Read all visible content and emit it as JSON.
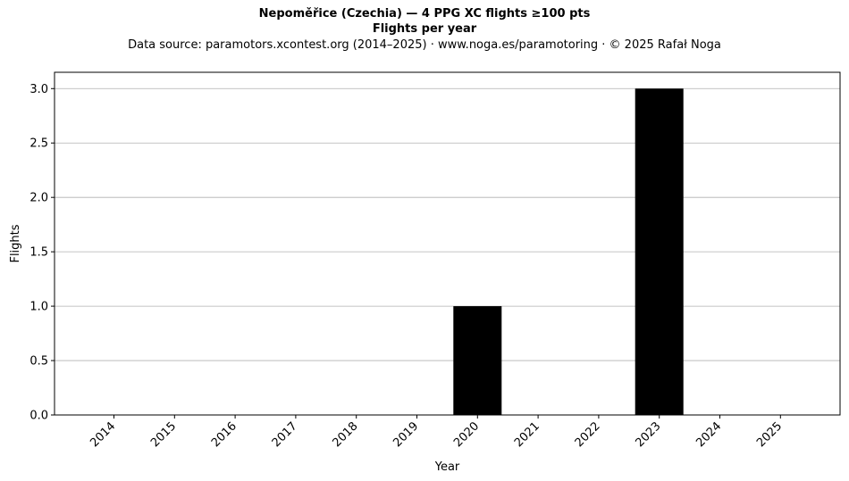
{
  "title": "Nepoměřice (Czechia)  —  4 PPG XC flights ≥100 pts",
  "subtitle": "Flights per year",
  "source_line": "Data source: paramotors.xcontest.org (2014–2025)  ·  www.noga.es/paramotoring  ·  © 2025 Rafał Noga",
  "colors": {
    "bar": "#000000",
    "grid": "#b0b0b0",
    "axes": "#000000"
  },
  "chart_data": {
    "type": "bar",
    "categories": [
      "2014",
      "2015",
      "2016",
      "2017",
      "2018",
      "2019",
      "2020",
      "2021",
      "2022",
      "2023",
      "2024",
      "2025"
    ],
    "values": [
      0,
      0,
      0,
      0,
      0,
      0,
      1,
      0,
      0,
      3,
      0,
      0
    ],
    "xlabel": "Year",
    "ylabel": "Flights",
    "ylim": [
      0,
      3.15
    ],
    "yticks": [
      "0.0",
      "0.5",
      "1.0",
      "1.5",
      "2.0",
      "2.5",
      "3.0"
    ],
    "grid": "y",
    "legend": "none"
  }
}
